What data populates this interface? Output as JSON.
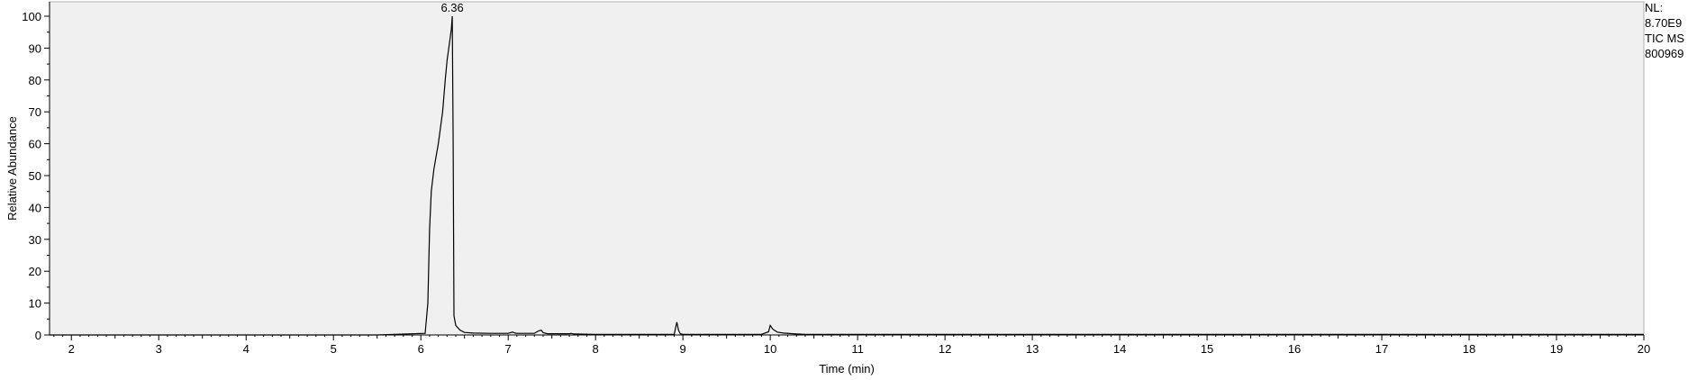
{
  "side_info": {
    "nl_label": "NL:",
    "nl_value": "8.70E9",
    "scan_filter": "TIC  MS",
    "sample": "800969"
  },
  "colors": {
    "plot_background": "#f0f0f0",
    "trace": "#000000",
    "axis": "#000000"
  },
  "chart_data": {
    "type": "line",
    "title": "",
    "xlabel": "Time (min)",
    "ylabel": "Relative Abundance",
    "xlim": [
      1.75,
      20
    ],
    "ylim": [
      0,
      100
    ],
    "x_ticks": [
      2,
      3,
      4,
      5,
      6,
      7,
      8,
      9,
      10,
      11,
      12,
      13,
      14,
      15,
      16,
      17,
      18,
      19,
      20
    ],
    "y_ticks": [
      0,
      10,
      20,
      30,
      40,
      50,
      60,
      70,
      80,
      90,
      100
    ],
    "grid": false,
    "legend": "none",
    "annotations": [
      {
        "x": 6.36,
        "y": 100,
        "text": "6.36"
      }
    ],
    "series": [
      {
        "x": [
          1.75,
          5.5,
          6.05,
          6.08,
          6.1,
          6.12,
          6.15,
          6.2,
          6.25,
          6.28,
          6.3,
          6.33,
          6.35,
          6.36,
          6.37,
          6.38,
          6.4,
          6.45,
          6.5,
          6.6,
          6.8,
          7.0,
          7.05,
          7.08,
          7.1,
          7.3,
          7.35,
          7.38,
          7.4,
          7.45,
          7.7,
          7.72,
          7.75,
          8.0,
          8.9,
          8.93,
          8.95,
          8.97,
          9.0,
          9.9,
          9.98,
          10.0,
          10.03,
          10.08,
          10.15,
          10.3,
          10.4,
          20
        ],
        "y": [
          0,
          0,
          0.5,
          10,
          33,
          45,
          52,
          60,
          70,
          80,
          86,
          92,
          96,
          100,
          60,
          6,
          3,
          1.5,
          0.8,
          0.6,
          0.5,
          0.5,
          0.9,
          0.6,
          0.5,
          0.5,
          1.3,
          1.5,
          0.7,
          0.4,
          0.4,
          0.5,
          0.3,
          0.2,
          0.2,
          4,
          1.5,
          0.4,
          0.2,
          0.2,
          1,
          3,
          1.8,
          0.9,
          0.6,
          0.3,
          0.2,
          0.2
        ]
      }
    ]
  }
}
